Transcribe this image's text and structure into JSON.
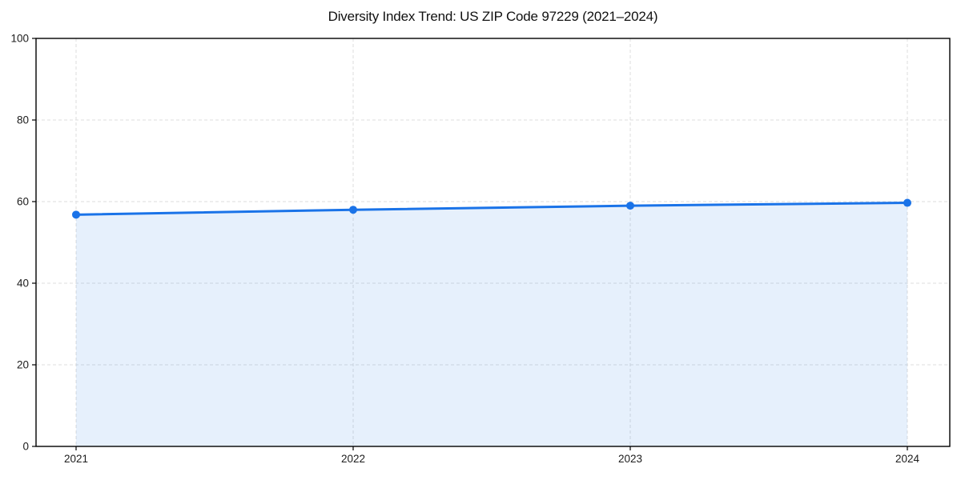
{
  "chart_data": {
    "type": "line",
    "title": "Diversity Index Trend: US ZIP Code 97229 (2021–2024)",
    "categories": [
      "2021",
      "2022",
      "2023",
      "2024"
    ],
    "series": [
      {
        "name": "Diversity Index",
        "values": [
          56.8,
          58.0,
          59.0,
          59.7
        ]
      }
    ],
    "xlabel": "",
    "ylabel": "",
    "ylim": [
      0,
      100
    ],
    "yticks": [
      0,
      20,
      40,
      60,
      80,
      100
    ],
    "grid": true,
    "grid_style": "dashed",
    "legend": "none",
    "area_fill": true,
    "marker": "circle",
    "colors": {
      "line": "#1a73e8",
      "fill": "#1a73e8",
      "fill_opacity": 0.11,
      "grid": "#dedede",
      "frame": "#000000",
      "tick_label": "#1c1c1c",
      "title": "#111111",
      "background": "#ffffff"
    }
  }
}
